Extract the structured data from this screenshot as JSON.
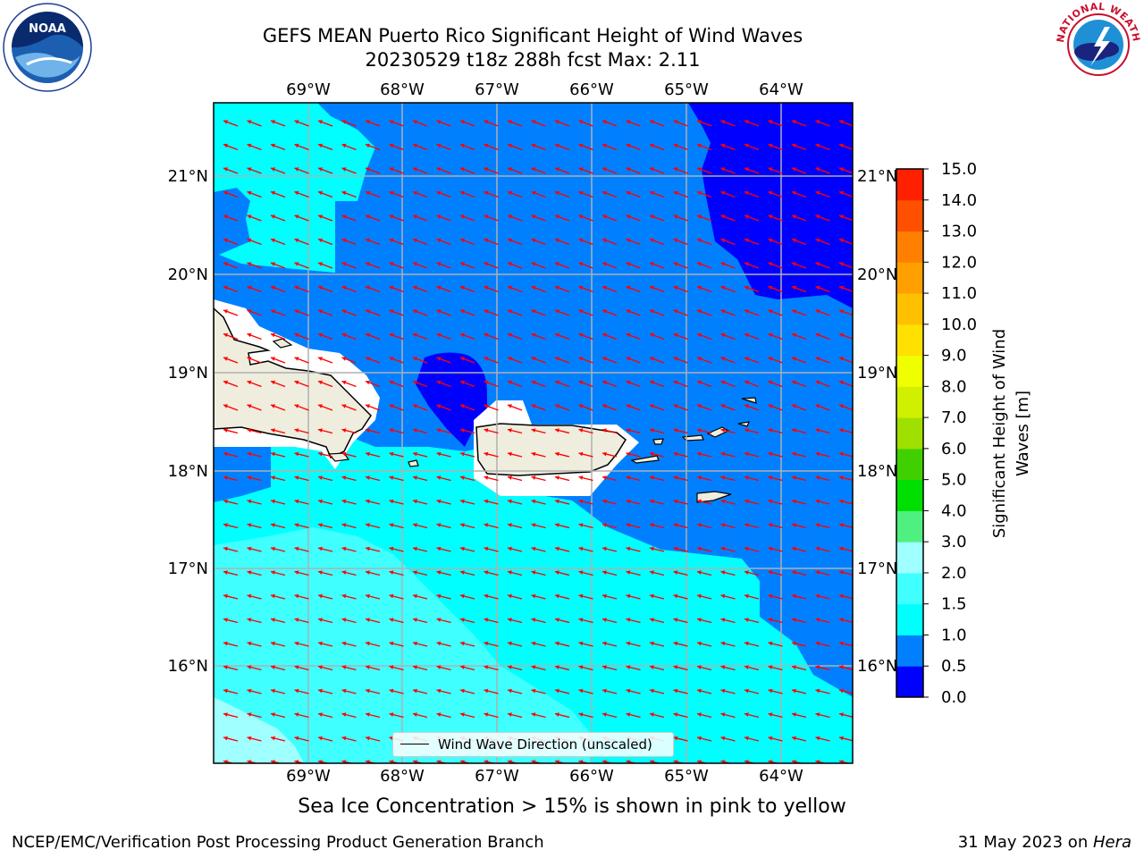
{
  "header": {
    "title_line1": "GEFS MEAN Puerto Rico Significant Height of Wind Waves",
    "title_line2": "20230529 t18z 288h fcst   Max: 2.11"
  },
  "logos": {
    "left": {
      "name": "noaa-logo",
      "text": "NOAA"
    },
    "right": {
      "name": "national-weather-service-logo",
      "text": "NATIONAL WEATHER SERVICE"
    }
  },
  "map": {
    "lon_labels": [
      "69°W",
      "68°W",
      "67°W",
      "66°W",
      "65°W",
      "64°W"
    ],
    "lat_labels": [
      "21°N",
      "20°N",
      "19°N",
      "18°N",
      "17°N",
      "16°N"
    ],
    "land_color": "#efedde",
    "arrow_color": "#ff0000",
    "grid": true
  },
  "legend": {
    "label": "Wind Wave Direction (unscaled)"
  },
  "colorbar": {
    "title_line1": "Significant Height of Wind",
    "title_line2": "Waves [m]",
    "levels": [
      "0.0",
      "0.5",
      "1.0",
      "1.5",
      "2.0",
      "3.0",
      "4.0",
      "5.0",
      "6.0",
      "7.0",
      "8.0",
      "9.0",
      "10.0",
      "11.0",
      "12.0",
      "13.0",
      "14.0",
      "15.0"
    ],
    "colors": [
      "#0000ff",
      "#0080ff",
      "#00ffff",
      "#40ffff",
      "#a0ffff",
      "#50f080",
      "#00e000",
      "#40d000",
      "#a0e000",
      "#d0f000",
      "#f0ff00",
      "#ffe000",
      "#ffc000",
      "#ffa000",
      "#ff8000",
      "#ff5000",
      "#ff2000"
    ]
  },
  "caption": "Sea Ice Concentration > 15% is shown in pink to yellow",
  "footer": {
    "left": "NCEP/EMC/Verification Post Processing Product Generation Branch",
    "right_prefix": "31 May 2023 on ",
    "right_host": "Hera"
  }
}
